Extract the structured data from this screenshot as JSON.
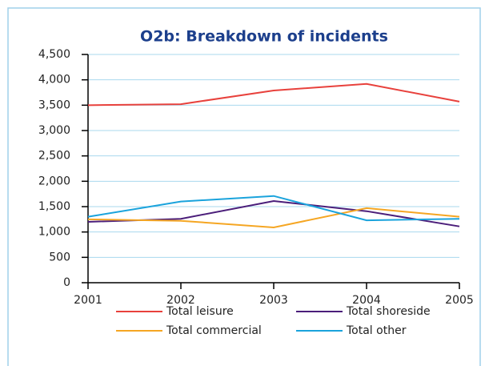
{
  "chart_data": {
    "type": "line",
    "title": "O2b: Breakdown of incidents",
    "x": [
      2001,
      2002,
      2003,
      2004,
      2005
    ],
    "xlim": [
      2001,
      2005
    ],
    "xticks": [
      2001,
      2002,
      2003,
      2004,
      2005
    ],
    "ylim": [
      0,
      4500
    ],
    "yticks": [
      0,
      500,
      {
        "value": 1000,
        "label": "1,000"
      },
      {
        "value": 1500,
        "label": "1,500"
      },
      {
        "value": 2000,
        "label": "2,000"
      },
      {
        "value": 2500,
        "label": "2,500"
      },
      {
        "value": 3000,
        "label": "3,000"
      },
      {
        "value": 3500,
        "label": "3,500"
      },
      {
        "value": 4000,
        "label": "4,000"
      },
      {
        "value": 4500,
        "label": "4,500"
      }
    ],
    "grid": true,
    "series": [
      {
        "name": "Total leisure",
        "color": "#e8413c",
        "values": [
          3500,
          3520,
          3790,
          3920,
          3570
        ]
      },
      {
        "name": "Total shoreside",
        "color": "#4b1e7a",
        "values": [
          1200,
          1260,
          1610,
          1410,
          1110
        ]
      },
      {
        "name": "Total commercial",
        "color": "#f5a623",
        "values": [
          1250,
          1220,
          1090,
          1470,
          1300
        ]
      },
      {
        "name": "Total other",
        "color": "#1aa3dc",
        "values": [
          1300,
          1600,
          1710,
          1230,
          1260
        ]
      }
    ]
  }
}
